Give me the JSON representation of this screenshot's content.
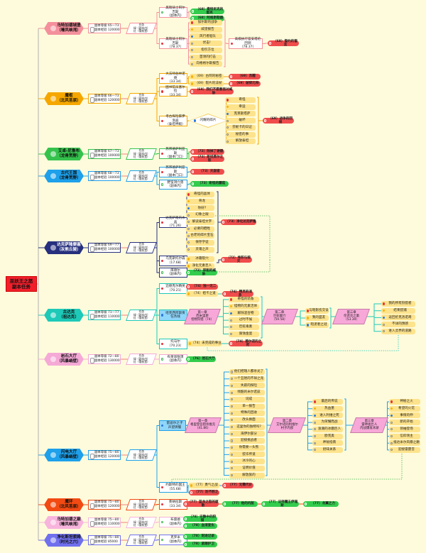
{
  "root": {
    "title": "巫妖王之怒\n副本任务"
  },
  "legend": "任务\n绿（副本内）\n红（需前置）",
  "palette": [
    "#f4909c",
    "#f5a700",
    "#35c24c",
    "#1ea0ea",
    "#27307e",
    "#1ec9b8",
    "#f5a9d6",
    "#1ea0ea",
    "#f24a12",
    "#f7b4dc",
    "#7070ee"
  ],
  "pill_colors": {
    "in_dungeon": "#33cc4d",
    "prerequisite": "#f04c4c",
    "chain_step": "#fde38c"
  },
  "dungeons": [
    {
      "name": "乌特加德城堡",
      "region": "（嚎风峡湾）",
      "level": "副本等级 65—73",
      "exp": "副本经验 120000",
      "icon": "castle-icon"
    },
    {
      "name": "魔枢",
      "region": "（北风苔原）",
      "level": "副本等级 66—73",
      "exp": "副本经验 120000",
      "icon": "nexus-icon"
    },
    {
      "name": "艾卓-尼鲁布",
      "region": "（龙骨荒野）",
      "level": "副本等级 67—73",
      "exp": "副本经验 100000",
      "icon": "spider-icon"
    },
    {
      "name": "古代王国",
      "region": "（龙骨荒野）",
      "level": "副本等级 68—73",
      "exp": "副本经验 100000",
      "icon": "statue-icon"
    },
    {
      "name": "达克萨隆要塞",
      "region": "（灰熊丘陵）",
      "level": "副本等级 69—77",
      "exp": "副本经验 100000",
      "icon": "skull-icon"
    },
    {
      "name": "古达克",
      "region": "（祖达克）",
      "level": "副本等级 71—77",
      "exp": "副本经验 110000",
      "icon": "flame-icon"
    },
    {
      "name": "岩石大厅",
      "region": "（风暴峭壁）",
      "level": "副本等级 72—80",
      "exp": "副本经验 130000",
      "icon": "stone-icon"
    },
    {
      "name": "闪电大厅",
      "region": "（风暴峭壁）",
      "level": "副本等级 75—80",
      "exp": "副本经验 120000",
      "icon": "lightning-icon"
    },
    {
      "name": "魔环",
      "region": "（北风苔原）",
      "level": "副本等级 75—80",
      "exp": "副本经验 120000",
      "icon": "ring-icon"
    },
    {
      "name": "乌特加德之巅",
      "region": "（嚎风峡湾）",
      "level": "副本等级 75—80",
      "exp": "副本经验 110000",
      "icon": "tower-icon"
    },
    {
      "name": "净化斯坦索姆",
      "region": "（时光之穴）",
      "level": "副本等级 75—80",
      "exp": "副本经验 85000",
      "icon": "hourglass-icon"
    }
  ],
  "nodes": {
    "d1g1": "黑暗骑士阿尔吉斯\n（副本内）",
    "d1q1": "（68）撒特尼克的蛋壳",
    "d1q2": "（68）阿格斯勒器",
    "d1g2": "黑暗骑士阿尔吉斯\n（78.37）",
    "d1s0": "加尔斯的战争",
    "d1s1": "威望报告",
    "d1s2": "风行者船队",
    "d1s3": "伏击！",
    "d1s4": "指引方位",
    "d1s5": "首领的打击",
    "d1s6": "向格格尔斯报告",
    "d1g3": "高级执行官安塔伦回到\n（78.37）",
    "d1q3": "（68）誓约的誓言",
    "d2g1": "大法师伯林诺德\n（33.34）",
    "d2q1": "（69）古阿的秘密",
    "d2q2": "（69）裂片的法杖",
    "d2q3": "（69）苏醒",
    "d2q4": "（69）破碎元帅",
    "d2g2": "图书馆员塞尔拉\n（33.34）",
    "d2q5": "（68）我们不愿意面对威胁",
    "d2g3": "考古探险家伊洛迪\n（泰坦神殿）",
    "d2dia": "闪耀的碎片",
    "d2s0": "奇怪",
    "d2s1": "幸运",
    "d2s2": "克莱斯塔萨",
    "d2s3": "破坏",
    "d2s4": "芬妮卡的日记",
    "d2s5": "秘密的事",
    "d2s6": "解放泰坦",
    "d2q6": "（69）战争的回报",
    "d3g1": "苏邦德萨利亚斯\n（副本门口）",
    "d3q1": "（72）除掉了谢德",
    "d3q2": "（72）斯坦莫尔之怒",
    "d4g1": "苏邦德萨利亚斯\n（副本门口）",
    "d4q1": "（73）天崩者",
    "d4g2": "野蛮洞穴兽\n（副本内）",
    "d4q2": "（73）奇怪的蘑菇",
    "d5g1": "达克萨隆的水晶\n（71.26）",
    "d5s0": "奇怪的晶体",
    "d5s1": "骨龙",
    "d5s2": "你好?",
    "d5s3": "幻象之眼",
    "d5s4": "解读泰坦文字",
    "d5s5": "必要的牺牲",
    "d5s6": "古老的碎片宝石",
    "d5s7": "保存学徒",
    "d5s8": "灵魂之声",
    "d5q1": "（73）净化达克萨隆",
    "d5g2": "乌克斯托尔森\n（17.68）",
    "d5t0": "冰霜裂穴",
    "d5t1": "净化元素巨人",
    "d5q2": "（72）堆积与毁灭",
    "d5g3": "库德尔\n（副本内）",
    "d5q3": "（72）邪能的威胁",
    "d6g1": "迈德克尔精英\n（70.21）",
    "d6q1": "（74）独一无二",
    "d6q2": "（74）祖卡之道",
    "d6q3": "（74）精灵的消息",
    "d6g2": "哈克西阿斯贡\n任务线",
    "d6c1": "第一章\n西米里斯\n怪物狩猎（74）",
    "d6s0": "奇怪的装备",
    "d6s1": "怪物的元素活体",
    "d6s2": "解除混合物",
    "d6s3": "过时不候",
    "d6s4": "巨蛇毒素",
    "d6s5": "腐蚀金蛋",
    "d6c2": "第二章\n巨蛇巢穴\n（59.58）",
    "d6t0": "与暗影伤交谈",
    "d6t1": "我的盟友",
    "d6t2": "暗泥者之谜",
    "d6c3": "第三章\n伦诺克之巢\n（53.39）",
    "d6u0": "我的所有狩猎者",
    "d6u1": "结束猎捕",
    "d6u2": "返回伦克洛诺奇",
    "d6u3": "不详的预感",
    "d6u4": "进入灵界的道路",
    "d6g3": "托马尔\n（70.23）",
    "d6q4": "（74）未完成的事业",
    "d6q5": "（74）德尔诺的之死",
    "d7g1": "布莱恩铜须\n（副本内）",
    "d7q1": "（76）岩石大厅",
    "d8g1": "雷迪尔之子\n声望牌服",
    "d8c1": "第一章\n格里登吾猎杀维克\n（41.86）",
    "d8s0": "他们把瑞人都杀光了",
    "d8s1": "一个丑陋的不祥之兆",
    "d8s2": "失踪的探险",
    "d8s3": "残酷的米尔诺兹",
    "d8s4": "词成",
    "d8s5": "单一报告",
    "d8s6": "特殊的回收",
    "d8s7": "改头换面",
    "d8s8": "这里你的独特吗?",
    "d8s9": "海伊尔部分",
    "d8s10": "迎接挑战者",
    "d8s11": "你需要一头熊",
    "d8s12": "狡诈传道",
    "d8s13": "冰冷的心",
    "d8s14": "证明价值",
    "d8s15": "解放族的",
    "d8c2": "第二章\n艾尔诺的利维尔\n村子内部",
    "d8t0": "最后的传说",
    "d8t1": "热血墨",
    "d8t2": "进入利维之死",
    "d8t3": "为荣耀而战",
    "d8t4": "涨潮的冰霜巨人",
    "d8t5": "欧克奥",
    "d8t6": "神秘指南",
    "d8t7": "奶味关系",
    "d8c3": "第三章\n雷神祖巨人\n内战爆发冰湖",
    "d8u0": "神秘之火",
    "d8u1": "希望的火花",
    "d8u2": "事情的伸",
    "d8u3": "新的开始",
    "d8u4": "领袖登场",
    "d8u5": "信仰领主",
    "d8u6": "抵达米尔风暴之巅",
    "d8u7": "迎接雷霆音",
    "d8g2": "约斯特的国王\n（55.68）",
    "d8q1": "（77）勇气之战",
    "d8q2": "（77）无需代价",
    "d8q3": "（77）防不胜之",
    "d9g1": "莱纳拉斯\n（33.34）",
    "d9q1": "（77）蓝龙之怒的驱散",
    "d9q2": "（77）他的内脏",
    "d9q3": "（77）法师魔王伊瑞斯",
    "d9q4": "（77）龙翼之力",
    "d10g1": "布雷德\n（副本内）",
    "d10q1": "（78）安静中的狩猎",
    "d10q2": "（78）血液复仇",
    "d11g1": "克罗米\n（副本内）",
    "d11q1": "（78）刻进记录",
    "d11q2": "（78）紧跟护卫"
  }
}
